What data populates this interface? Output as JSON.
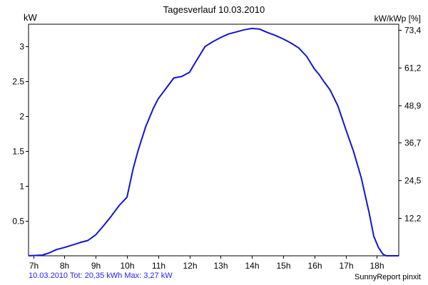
{
  "title": "Tagesverlauf 10.03.2010",
  "left_unit": "kW",
  "right_unit": "kW/kWp [%]",
  "footer_left": "10.03.2010 Tot: 20,35 kWh Max: 3,27 kW",
  "footer_right": "SunnyReport pinxit",
  "colors": {
    "line": "#1414d2",
    "grid": "#00cc00",
    "axis": "#000000",
    "footer_left": "#1f1fff"
  },
  "chart_data": {
    "type": "line",
    "grid": true,
    "xlim": [
      6.85,
      18.7
    ],
    "ylim": [
      0,
      3.32
    ],
    "x_ticks": [
      7,
      8,
      9,
      10,
      11,
      12,
      13,
      14,
      15,
      16,
      17,
      18
    ],
    "x_tick_labels": [
      "7h",
      "8h",
      "9h",
      "10h",
      "11h",
      "12h",
      "13h",
      "14h",
      "15h",
      "16h",
      "17h",
      "18h"
    ],
    "y_ticks": [
      0.5,
      1,
      1.5,
      2,
      2.5,
      3
    ],
    "y_tick_labels": [
      "0.5",
      "1",
      "1.5",
      "2",
      "2.5",
      "3"
    ],
    "y2_ticks": [
      0.54,
      1.08,
      1.62,
      2.16,
      2.7,
      3.24
    ],
    "y2_tick_labels": [
      "12,2",
      "24,5",
      "36,7",
      "48,9",
      "61,2",
      "73,4"
    ],
    "series": [
      {
        "x": [
          6.85,
          7.3,
          7.5,
          7.75,
          8.0,
          8.3,
          8.5,
          8.75,
          9.0,
          9.25,
          9.5,
          9.75,
          10.0,
          10.2,
          10.35,
          10.6,
          10.85,
          11.0,
          11.25,
          11.5,
          11.75,
          12.0,
          12.2,
          12.5,
          12.75,
          13.0,
          13.25,
          13.5,
          13.75,
          14.0,
          14.25,
          14.5,
          14.75,
          15.0,
          15.25,
          15.5,
          15.75,
          16.0,
          16.15,
          16.3,
          16.5,
          16.75,
          17.0,
          17.25,
          17.5,
          17.75,
          17.9,
          18.05,
          18.2,
          18.3,
          18.4,
          18.7
        ],
        "y": [
          0.0,
          0.01,
          0.04,
          0.09,
          0.12,
          0.16,
          0.19,
          0.22,
          0.3,
          0.43,
          0.57,
          0.72,
          0.84,
          1.25,
          1.5,
          1.85,
          2.12,
          2.25,
          2.4,
          2.55,
          2.57,
          2.63,
          2.78,
          3.0,
          3.07,
          3.13,
          3.18,
          3.21,
          3.24,
          3.26,
          3.25,
          3.2,
          3.16,
          3.11,
          3.05,
          2.98,
          2.86,
          2.68,
          2.6,
          2.5,
          2.38,
          2.15,
          1.82,
          1.5,
          1.12,
          0.62,
          0.28,
          0.12,
          0.02,
          0.0,
          0.0,
          0.0
        ]
      }
    ]
  }
}
